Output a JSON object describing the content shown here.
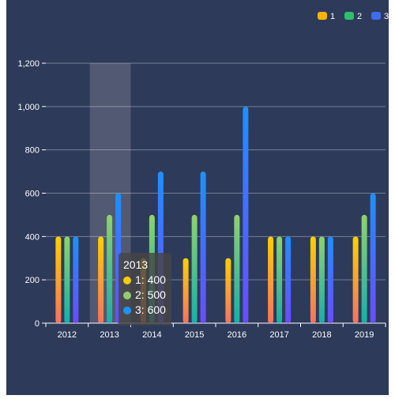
{
  "chart_data": {
    "type": "bar",
    "title": "",
    "xlabel": "",
    "ylabel": "",
    "categories": [
      "2012",
      "2013",
      "2014",
      "2015",
      "2016",
      "2017",
      "2018",
      "2019"
    ],
    "series": [
      {
        "name": "1",
        "values": [
          400,
          400,
          300,
          300,
          300,
          400,
          400,
          400
        ],
        "gradient": [
          "#ffd000",
          "#f5735f"
        ],
        "legend_color": "#ffb300"
      },
      {
        "name": "2",
        "values": [
          400,
          500,
          500,
          500,
          500,
          400,
          400,
          500
        ],
        "gradient": [
          "#8ed36b",
          "#15b0a8"
        ],
        "legend_color": "#2fbf71"
      },
      {
        "name": "3",
        "values": [
          400,
          600,
          700,
          700,
          1000,
          400,
          400,
          600
        ],
        "gradient": [
          "#1e90ff",
          "#6a4cff"
        ],
        "legend_color": "#3f6cf0"
      }
    ],
    "ylim": [
      0,
      1200
    ],
    "yticks": [
      0,
      200,
      400,
      600,
      800,
      1000,
      1200
    ],
    "ytick_labels": [
      "0",
      "200",
      "400",
      "600",
      "800",
      "1,000",
      "1,200"
    ],
    "grid": true,
    "legend_position": "top-right",
    "highlight_category": "2013",
    "tooltip": {
      "title": "2013",
      "items": [
        {
          "label": "1: 400",
          "color": "#ffcc00"
        },
        {
          "label": "2: 500",
          "color": "#91cc75"
        },
        {
          "label": "3: 600",
          "color": "#1e90ff"
        }
      ]
    }
  }
}
